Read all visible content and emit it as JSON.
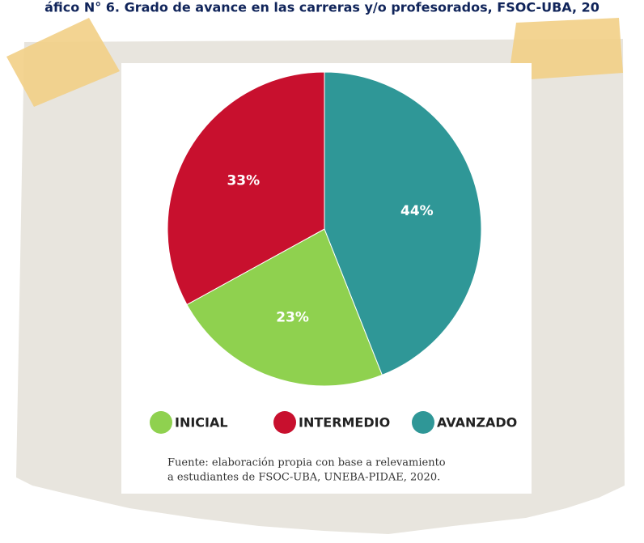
{
  "title": "áfico N° 6. Grado de avance en las carreras y/o profesorados, FSOC-UBA, 20",
  "chart_data": {
    "type": "pie",
    "categories": [
      "INICIAL",
      "INTERMEDIO",
      "AVANZADO"
    ],
    "values": [
      23,
      33,
      44
    ],
    "value_labels": [
      "23%",
      "33%",
      "44%"
    ],
    "colors": [
      "#8fd14f",
      "#c8102e",
      "#2f9797"
    ],
    "source": [
      "Fuente: elaboración propia con base a relevamiento",
      "a estudiantes de FSOC-UBA, UNEBA-PIDAE, 2020."
    ]
  }
}
